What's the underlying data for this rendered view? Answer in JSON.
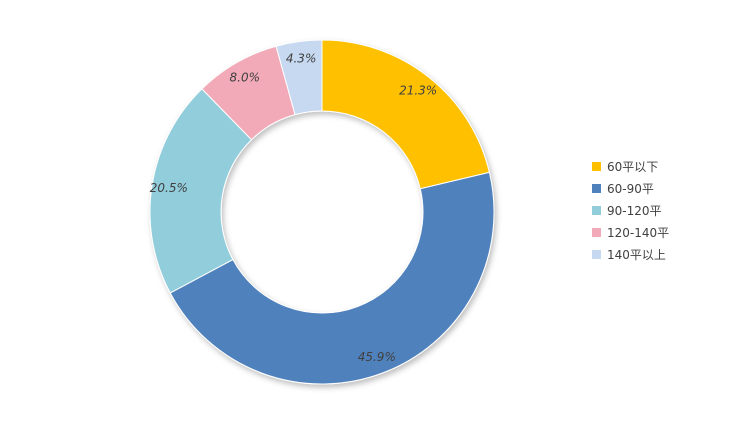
{
  "chart_data": {
    "type": "pie",
    "variant": "donut",
    "title": "",
    "categories": [
      "60平以下",
      "60-90平",
      "90-120平",
      "120-140平",
      "140平以上"
    ],
    "values": [
      21.3,
      45.9,
      20.5,
      8.0,
      4.3
    ],
    "labels": [
      "21.3%",
      "45.9%",
      "20.5%",
      "8.0%",
      "4.3%"
    ],
    "colors": [
      "#FFC000",
      "#4F81BD",
      "#92CDDC",
      "#F2AAB8",
      "#C6D9F1"
    ],
    "legend_position": "right",
    "start_angle": "top",
    "direction": "clockwise"
  },
  "legend": {
    "items": [
      {
        "label": "60平以下",
        "color": "#FFC000"
      },
      {
        "label": "60-90平",
        "color": "#4F81BD"
      },
      {
        "label": "90-120平",
        "color": "#92CDDC"
      },
      {
        "label": "120-140平",
        "color": "#F2AAB8"
      },
      {
        "label": "140平以上",
        "color": "#C6D9F1"
      }
    ]
  }
}
